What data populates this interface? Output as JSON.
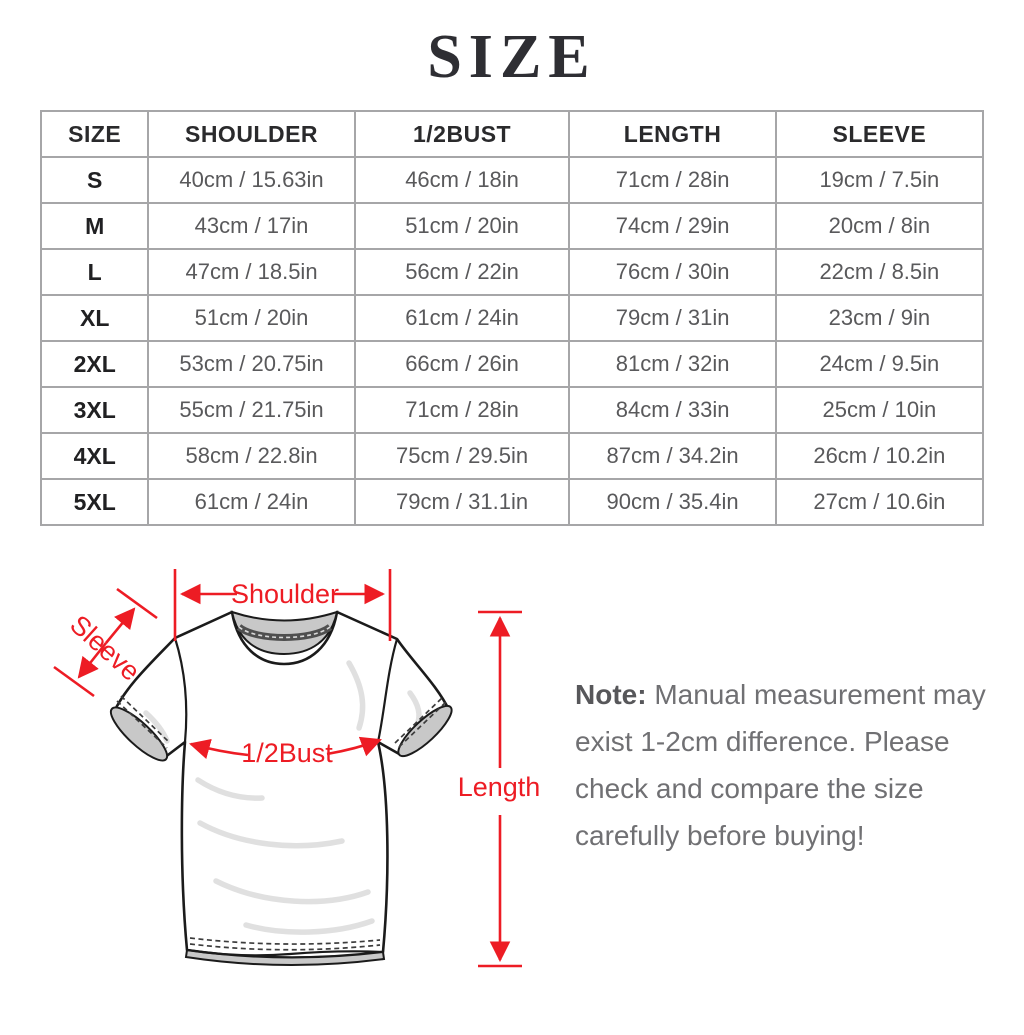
{
  "title": "SIZE",
  "table": {
    "headers": [
      "SIZE",
      "SHOULDER",
      "1/2BUST",
      "LENGTH",
      "SLEEVE"
    ],
    "rows": [
      [
        "S",
        "40cm / 15.63in",
        "46cm / 18in",
        "71cm / 28in",
        "19cm / 7.5in"
      ],
      [
        "M",
        "43cm / 17in",
        "51cm / 20in",
        "74cm / 29in",
        "20cm / 8in"
      ],
      [
        "L",
        "47cm / 18.5in",
        "56cm / 22in",
        "76cm / 30in",
        "22cm / 8.5in"
      ],
      [
        "XL",
        "51cm / 20in",
        "61cm / 24in",
        "79cm / 31in",
        "23cm / 9in"
      ],
      [
        "2XL",
        "53cm / 20.75in",
        "66cm / 26in",
        "81cm / 32in",
        "24cm / 9.5in"
      ],
      [
        "3XL",
        "55cm / 21.75in",
        "71cm / 28in",
        "84cm / 33in",
        "25cm / 10in"
      ],
      [
        "4XL",
        "58cm / 22.8in",
        "75cm / 29.5in",
        "87cm / 34.2in",
        "26cm / 10.2in"
      ],
      [
        "5XL",
        "61cm / 24in",
        "79cm / 31.1in",
        "90cm / 35.4in",
        "27cm / 10.6in"
      ]
    ]
  },
  "diagram": {
    "labels": {
      "shoulder": "Shoulder",
      "sleeve": "Sleeve",
      "bust": "1/2Bust",
      "length": "Length"
    }
  },
  "note": {
    "label": "Note:",
    "lines": [
      "Manual measurement may",
      "exist 1-2cm difference. Please",
      "check and compare the size",
      "carefully before buying!"
    ]
  },
  "colors": {
    "accent_red": "#ed1c24",
    "table_border": "#a6a6a8",
    "value_text": "#59595b",
    "note_text": "#707073"
  }
}
